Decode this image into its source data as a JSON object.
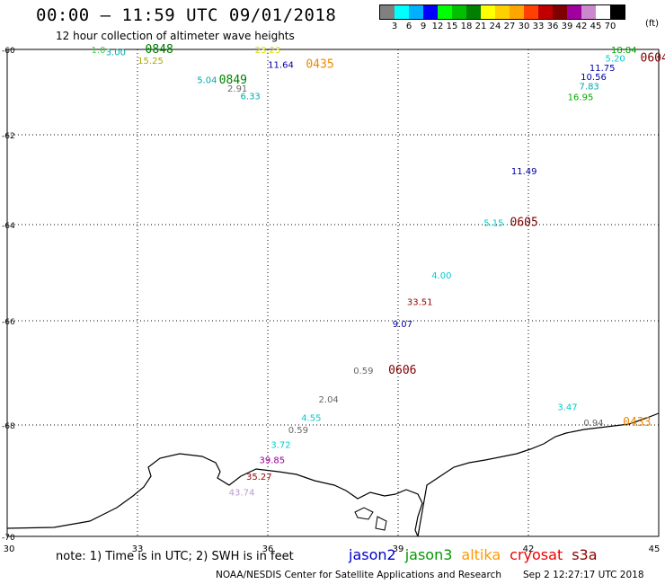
{
  "title": "00:00 – 11:59 UTC 09/01/2018",
  "subtitle": "12 hour collection of altimeter wave heights",
  "color_scale": {
    "unit": "(ft)",
    "colors": [
      "#808080",
      "#00ffff",
      "#00b0ff",
      "#0000ff",
      "#00ff00",
      "#00c000",
      "#008000",
      "#ffff00",
      "#ffd000",
      "#ffa500",
      "#ff4000",
      "#c00000",
      "#800000",
      "#a000a0",
      "#cc88cc",
      "#ffffff",
      "#000000"
    ],
    "labels": [
      "3",
      "6",
      "9",
      "12",
      "15",
      "18",
      "21",
      "24",
      "27",
      "30",
      "33",
      "36",
      "39",
      "42",
      "45",
      "70"
    ]
  },
  "axes": {
    "x_labels": [
      "30",
      "33",
      "36",
      "39",
      "42",
      "45"
    ],
    "y_labels": [
      "-60",
      "-62",
      "-64",
      "-66",
      "-68",
      "-70"
    ]
  },
  "observations": [
    {
      "text": "1.0",
      "lon": 32.1,
      "lat": -60.0,
      "color": "#44cc44"
    },
    {
      "text": "3.00",
      "lon": 32.5,
      "lat": -60.05,
      "color": "#00aaaa"
    },
    {
      "text": "0848",
      "lon": 33.5,
      "lat": -60.0,
      "color": "#008000",
      "big": true
    },
    {
      "text": "15.25",
      "lon": 33.3,
      "lat": -60.25,
      "color": "#aaaa00"
    },
    {
      "text": "5.04",
      "lon": 34.6,
      "lat": -60.7,
      "color": "#00aaaa"
    },
    {
      "text": "0849",
      "lon": 35.2,
      "lat": -60.72,
      "color": "#008000",
      "big": true
    },
    {
      "text": "2.91",
      "lon": 35.3,
      "lat": -60.9,
      "color": "#666666"
    },
    {
      "text": "6.33",
      "lon": 35.6,
      "lat": -61.08,
      "color": "#00aaaa"
    },
    {
      "text": "11.64",
      "lon": 36.3,
      "lat": -60.35,
      "color": "#0000aa"
    },
    {
      "text": "0435",
      "lon": 37.2,
      "lat": -60.35,
      "color": "#ee8800",
      "big": true
    },
    {
      "text": "23.23",
      "lon": 36.0,
      "lat": -60.0,
      "color": "#dddd00"
    },
    {
      "text": "18.84",
      "lon": 44.2,
      "lat": -60.0,
      "color": "#00aa00"
    },
    {
      "text": "0604",
      "lon": 44.9,
      "lat": -60.2,
      "color": "#800000",
      "big": true
    },
    {
      "text": "5.20",
      "lon": 44.0,
      "lat": -60.2,
      "color": "#00cccc"
    },
    {
      "text": "11.75",
      "lon": 43.7,
      "lat": -60.42,
      "color": "#0000aa"
    },
    {
      "text": "10.56",
      "lon": 43.5,
      "lat": -60.63,
      "color": "#0000aa"
    },
    {
      "text": "7.83",
      "lon": 43.4,
      "lat": -60.85,
      "color": "#00aaaa"
    },
    {
      "text": "16.95",
      "lon": 43.2,
      "lat": -61.1,
      "color": "#00aa00"
    },
    {
      "text": "11.49",
      "lon": 41.9,
      "lat": -62.8,
      "color": "#0000aa"
    },
    {
      "text": "5.15",
      "lon": 41.2,
      "lat": -63.95,
      "color": "#00cccc"
    },
    {
      "text": "0605",
      "lon": 41.9,
      "lat": -63.95,
      "color": "#800000",
      "big": true
    },
    {
      "text": "4.00",
      "lon": 40.0,
      "lat": -65.05,
      "color": "#00cccc"
    },
    {
      "text": "33.51",
      "lon": 39.5,
      "lat": -65.6,
      "color": "#990000"
    },
    {
      "text": "9.07",
      "lon": 39.1,
      "lat": -66.05,
      "color": "#0000aa"
    },
    {
      "text": "0.59",
      "lon": 38.2,
      "lat": -66.95,
      "color": "#666666"
    },
    {
      "text": "0606",
      "lon": 39.1,
      "lat": -66.95,
      "color": "#800000",
      "big": true
    },
    {
      "text": "2.04",
      "lon": 37.4,
      "lat": -67.5,
      "color": "#666666"
    },
    {
      "text": "4.55",
      "lon": 37.0,
      "lat": -67.85,
      "color": "#00cccc"
    },
    {
      "text": "0.59",
      "lon": 36.7,
      "lat": -68.08,
      "color": "#666666"
    },
    {
      "text": "3.72",
      "lon": 36.3,
      "lat": -68.35,
      "color": "#00cccc"
    },
    {
      "text": "39.85",
      "lon": 36.1,
      "lat": -68.62,
      "color": "#990099"
    },
    {
      "text": "35.27",
      "lon": 35.8,
      "lat": -68.92,
      "color": "#990000"
    },
    {
      "text": "43.74",
      "lon": 35.4,
      "lat": -69.2,
      "color": "#bb99cc"
    },
    {
      "text": "3.47",
      "lon": 42.9,
      "lat": -67.65,
      "color": "#00cccc"
    },
    {
      "text": "0.94",
      "lon": 43.5,
      "lat": -67.95,
      "color": "#666666"
    },
    {
      "text": "0433",
      "lon": 44.5,
      "lat": -67.95,
      "color": "#ee8800",
      "big": true
    }
  ],
  "note": "note: 1) Time is in UTC; 2) SWH is in feet",
  "legend": [
    {
      "label": "jason2",
      "color": "#0000cc"
    },
    {
      "label": "jason3",
      "color": "#009900"
    },
    {
      "label": "altika",
      "color": "#ff9900"
    },
    {
      "label": "cryosat",
      "color": "#ee0000"
    },
    {
      "label": "s3a",
      "color": "#880000"
    }
  ],
  "footer": {
    "agency": "NOAA/NESDIS Center for Satellite Applications and Research",
    "timestamp": "Sep  2 12:27:17 UTC 2018"
  }
}
